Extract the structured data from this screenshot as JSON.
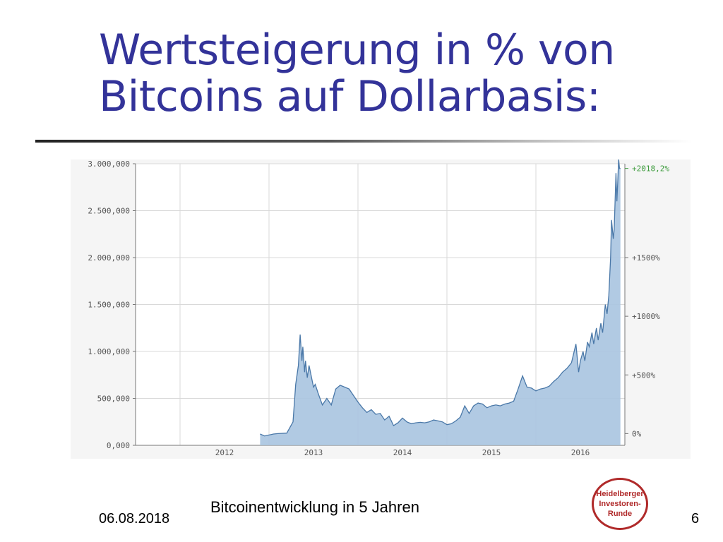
{
  "slide": {
    "title_line1": "Wertsteigerung in % von",
    "title_line2": "Bitcoins auf Dollarbasis:",
    "caption": "Bitcoinentwicklung in 5 Jahren",
    "date": "06.08.2018",
    "page_number": "6",
    "logo": {
      "line1": "Heidelberger",
      "line2": "Investoren-",
      "line3": "Runde"
    }
  },
  "colors": {
    "title": "#333399",
    "line": "#4a78a8",
    "area_fill": "#a9c4e0",
    "grid": "#d9d9d9",
    "latest_label": "#3a9a3a",
    "logo": "#b02a2a"
  },
  "chart_data": {
    "type": "area",
    "title": "",
    "xlabel": "",
    "ylabel": "",
    "x_ticks": [
      "2012",
      "2013",
      "2014",
      "2015",
      "2016"
    ],
    "y_ticks_left": [
      "3.000,000",
      "2.500,000",
      "2.000,000",
      "1.500,000",
      "1.000,000",
      "500,000",
      "0,000"
    ],
    "y_ticks_right": [
      "+1500%",
      "+1000%",
      "+500%",
      "0%"
    ],
    "latest_label": "+2018,2%",
    "ylim": [
      0,
      3000000
    ],
    "xlim": [
      2011.5,
      2017.0
    ],
    "grid": true,
    "series": [
      {
        "x": [
          2012.9,
          2012.95,
          2013.0,
          2013.05,
          2013.1,
          2013.2,
          2013.27,
          2013.3,
          2013.33,
          2013.35,
          2013.37,
          2013.38,
          2013.4,
          2013.41,
          2013.43,
          2013.45,
          2013.47,
          2013.5,
          2013.52,
          2013.55,
          2013.6,
          2013.65,
          2013.7,
          2013.75,
          2013.8,
          2013.85,
          2013.9,
          2013.95,
          2014.0,
          2014.05,
          2014.1,
          2014.15,
          2014.2,
          2014.25,
          2014.3,
          2014.35,
          2014.4,
          2014.45,
          2014.5,
          2014.55,
          2014.6,
          2014.65,
          2014.7,
          2014.75,
          2014.8,
          2014.85,
          2014.9,
          2014.95,
          2015.0,
          2015.05,
          2015.1,
          2015.15,
          2015.2,
          2015.25,
          2015.3,
          2015.35,
          2015.4,
          2015.45,
          2015.5,
          2015.55,
          2015.6,
          2015.65,
          2015.7,
          2015.75,
          2015.8,
          2015.85,
          2015.9,
          2015.95,
          2016.0,
          2016.05,
          2016.1,
          2016.15,
          2016.2,
          2016.25,
          2016.3,
          2016.35,
          2016.4,
          2016.45,
          2016.48,
          2016.5,
          2016.53,
          2016.55,
          2016.58,
          2016.6,
          2016.63,
          2016.65,
          2016.68,
          2016.7,
          2016.73,
          2016.75,
          2016.78,
          2016.8,
          2016.82,
          2016.84,
          2016.85,
          2016.87,
          2016.88,
          2016.9,
          2016.91,
          2016.92,
          2016.93,
          2016.94,
          2016.95
        ],
        "values": [
          120000,
          100000,
          110000,
          120000,
          125000,
          130000,
          250000,
          650000,
          850000,
          1180000,
          900000,
          1050000,
          780000,
          900000,
          720000,
          850000,
          760000,
          620000,
          650000,
          560000,
          430000,
          500000,
          430000,
          600000,
          640000,
          620000,
          600000,
          530000,
          460000,
          400000,
          350000,
          380000,
          330000,
          340000,
          270000,
          310000,
          210000,
          240000,
          290000,
          250000,
          230000,
          240000,
          245000,
          240000,
          250000,
          270000,
          260000,
          250000,
          220000,
          230000,
          260000,
          300000,
          420000,
          340000,
          420000,
          450000,
          440000,
          400000,
          420000,
          430000,
          420000,
          440000,
          450000,
          470000,
          600000,
          740000,
          620000,
          610000,
          580000,
          600000,
          610000,
          630000,
          680000,
          720000,
          780000,
          820000,
          880000,
          1080000,
          780000,
          900000,
          1000000,
          900000,
          1100000,
          1050000,
          1200000,
          1080000,
          1250000,
          1120000,
          1300000,
          1200000,
          1500000,
          1400000,
          1600000,
          2000000,
          2400000,
          2200000,
          2300000,
          2900000,
          2600000,
          2800000,
          3050000,
          2950000,
          2950000
        ]
      }
    ]
  }
}
